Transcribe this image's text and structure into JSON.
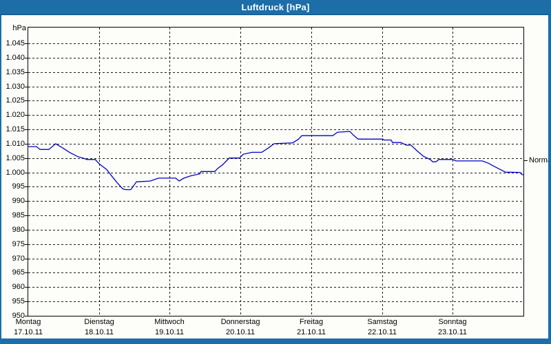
{
  "window": {
    "title": "Luftdruck [hPa]"
  },
  "colors": {
    "titlebar": "#1C6DA8",
    "frame": "#1C6DA8",
    "line": "#0000C8",
    "grid": "#1A1A1A",
    "background": "#FDFDF9",
    "title_text": "#FFFFFF"
  },
  "chart_data": {
    "type": "line",
    "title": "Luftdruck [hPa]",
    "unit_label": "hPa",
    "normal_label": "Normal",
    "normal_value": 1004.2,
    "ylim": [
      950,
      1050.5
    ],
    "grid": "on",
    "x_hours_total": 168,
    "y_ticks": [
      {
        "label": "1.045",
        "value": 1045
      },
      {
        "label": "1.040",
        "value": 1040
      },
      {
        "label": "1.035",
        "value": 1035
      },
      {
        "label": "1.030",
        "value": 1030
      },
      {
        "label": "1.025",
        "value": 1025
      },
      {
        "label": "1.020",
        "value": 1020
      },
      {
        "label": "1.015",
        "value": 1015
      },
      {
        "label": "1.010",
        "value": 1010
      },
      {
        "label": "1.005",
        "value": 1005
      },
      {
        "label": "1.000",
        "value": 1000
      },
      {
        "label": "995",
        "value": 995
      },
      {
        "label": "990",
        "value": 990
      },
      {
        "label": "985",
        "value": 985
      },
      {
        "label": "980",
        "value": 980
      },
      {
        "label": "975",
        "value": 975
      },
      {
        "label": "970",
        "value": 970
      },
      {
        "label": "965",
        "value": 965
      },
      {
        "label": "960",
        "value": 960
      },
      {
        "label": "955",
        "value": 955
      },
      {
        "label": "950",
        "value": 950
      }
    ],
    "x_days": [
      {
        "weekday": "Montag",
        "date": "17.10.11",
        "hour": 0
      },
      {
        "weekday": "Dienstag",
        "date": "18.10.11",
        "hour": 24
      },
      {
        "weekday": "Mittwoch",
        "date": "19.10.11",
        "hour": 48
      },
      {
        "weekday": "Donnerstag",
        "date": "20.10.11",
        "hour": 72
      },
      {
        "weekday": "Freitag",
        "date": "21.10.11",
        "hour": 96
      },
      {
        "weekday": "Samstag",
        "date": "22.10.11",
        "hour": 120
      },
      {
        "weekday": "Sonntag",
        "date": "23.10.11",
        "hour": 144
      }
    ],
    "series": [
      {
        "name": "Luftdruck",
        "color": "#0000C8",
        "points": [
          [
            0,
            1009
          ],
          [
            2.8,
            1009
          ],
          [
            4,
            1008
          ],
          [
            7,
            1008
          ],
          [
            9.3,
            1010
          ],
          [
            11.7,
            1008.5
          ],
          [
            14,
            1007
          ],
          [
            16.8,
            1005.5
          ],
          [
            18.5,
            1005
          ],
          [
            19.9,
            1004.5
          ],
          [
            22.7,
            1004.5
          ],
          [
            24.1,
            1003
          ],
          [
            26.6,
            1001
          ],
          [
            28.5,
            998.5
          ],
          [
            30.1,
            996.5
          ],
          [
            32,
            994.3
          ],
          [
            33,
            994
          ],
          [
            34.8,
            994
          ],
          [
            36.7,
            996.7
          ],
          [
            41.4,
            997
          ],
          [
            44.2,
            998
          ],
          [
            50,
            998
          ],
          [
            51.2,
            997
          ],
          [
            52.8,
            998
          ],
          [
            55.1,
            998.8
          ],
          [
            58.2,
            999.5
          ],
          [
            58.6,
            1000.3
          ],
          [
            63.3,
            1000.3
          ],
          [
            64.3,
            1001.4
          ],
          [
            65.9,
            1002.6
          ],
          [
            68.2,
            1005
          ],
          [
            71.7,
            1005
          ],
          [
            72.9,
            1006.3
          ],
          [
            75.9,
            1007
          ],
          [
            79.2,
            1007
          ],
          [
            81.6,
            1008.6
          ],
          [
            83.4,
            1010
          ],
          [
            89.7,
            1010.3
          ],
          [
            91.6,
            1011.5
          ],
          [
            92.8,
            1012.8
          ],
          [
            103.3,
            1012.8
          ],
          [
            104.9,
            1014
          ],
          [
            109.1,
            1014.3
          ],
          [
            110.3,
            1013
          ],
          [
            111.9,
            1011.6
          ],
          [
            120.3,
            1011.6
          ],
          [
            120.8,
            1011.3
          ],
          [
            123.1,
            1011.3
          ],
          [
            123.6,
            1010.4
          ],
          [
            126.4,
            1010.4
          ],
          [
            128.3,
            1009.5
          ],
          [
            129.9,
            1009.5
          ],
          [
            131.8,
            1007.6
          ],
          [
            134.1,
            1005.6
          ],
          [
            136.5,
            1004.4
          ],
          [
            137.2,
            1003.7
          ],
          [
            138.3,
            1003.7
          ],
          [
            139.3,
            1004.5
          ],
          [
            144,
            1004.5
          ],
          [
            145.1,
            1004
          ],
          [
            154,
            1004
          ],
          [
            156.1,
            1003.2
          ],
          [
            157.5,
            1002.4
          ],
          [
            159.6,
            1001.3
          ],
          [
            161.9,
            1000.1
          ],
          [
            166.8,
            1000
          ],
          [
            167.5,
            999.2
          ],
          [
            168,
            999.2
          ]
        ]
      }
    ]
  }
}
